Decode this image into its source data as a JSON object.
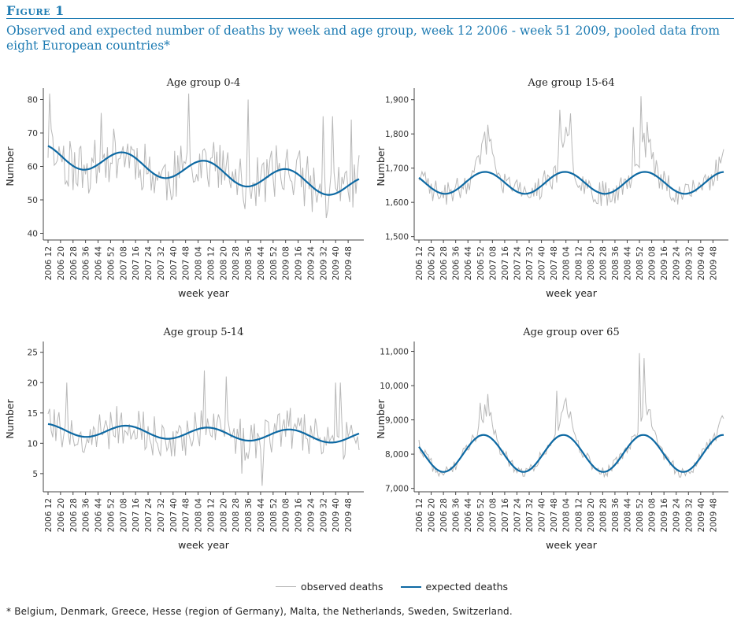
{
  "figure": {
    "label": "Figure 1",
    "title": "Observed and expected number of deaths by week and age group, week 12 2006 - week 51 2009, pooled data from eight European countries*",
    "footnote": "* Belgium, Denmark, Greece, Hesse (region of Germany), Malta, the Netherlands, Sweden, Switzerland."
  },
  "legend": {
    "observed_label": "observed deaths",
    "expected_label": "expected deaths"
  },
  "colors": {
    "accent": "#1f7cb3",
    "observed": "#b8b8b8",
    "expected": "#0d69a3",
    "axis": "#444444"
  },
  "x_tick_labels": [
    "2006 12",
    "2006 20",
    "2006 28",
    "2006 36",
    "2006 44",
    "2006 52",
    "2007 08",
    "2007 16",
    "2007 24",
    "2007 32",
    "2007 40",
    "2007 48",
    "2008 04",
    "2008 12",
    "2008 20",
    "2008 28",
    "2008 36",
    "2008 44",
    "2008 52",
    "2009 08",
    "2009 16",
    "2009 24",
    "2009 32",
    "2009 40",
    "2009 48"
  ],
  "chart_data": [
    {
      "type": "line",
      "title": "Age group 0-4",
      "xlabel": "week year",
      "ylabel": "Number",
      "ylim": [
        38,
        82
      ],
      "yticks": [
        40,
        50,
        60,
        70,
        80
      ],
      "ytick_labels": [
        "40",
        "50",
        "60",
        "70",
        "80"
      ],
      "expected": {
        "mean": 58.5,
        "trend": -0.048,
        "amp": 3.2,
        "peak_week": 8
      },
      "observed": {
        "spread": 8,
        "peak_extra": 0,
        "seed": 11,
        "spikes": [
          [
            1,
            82
          ],
          [
            34,
            76
          ],
          [
            90,
            83
          ],
          [
            128,
            80
          ],
          [
            176,
            75
          ],
          [
            182,
            75
          ],
          [
            194,
            74
          ]
        ]
      },
      "series": [
        {
          "name": "observed deaths",
          "description": "weekly observed counts, noisy around expected"
        },
        {
          "name": "expected deaths",
          "description": "smooth seasonal baseline from about 67 down to 51"
        }
      ]
    },
    {
      "type": "line",
      "title": "Age group 15-64",
      "xlabel": "week year",
      "ylabel": "Number",
      "ylim": [
        1490,
        1920
      ],
      "yticks": [
        1500,
        1600,
        1700,
        1800,
        1900
      ],
      "ytick_labels": [
        "1,500",
        "1,600",
        "1,700",
        "1,800",
        "1,900"
      ],
      "expected": {
        "mean": 1657,
        "trend": 0,
        "amp": 32,
        "peak_week": 3
      },
      "observed": {
        "spread": 38,
        "peak_extra": 150,
        "seed": 23,
        "spikes": [
          [
            92,
            1870
          ],
          [
            99,
            1860
          ],
          [
            140,
            1820
          ],
          [
            145,
            1910
          ]
        ]
      },
      "series": [
        {
          "name": "observed deaths",
          "description": "weekly observed counts with winter peaks up to about 1,910"
        },
        {
          "name": "expected deaths",
          "description": "seasonal baseline between about 1,625 and 1,690"
        }
      ]
    },
    {
      "type": "line",
      "title": "Age group 5-14",
      "xlabel": "week year",
      "ylabel": "Number",
      "ylim": [
        2,
        26
      ],
      "yticks": [
        5,
        10,
        15,
        20,
        25
      ],
      "ytick_labels": [
        "5",
        "10",
        "15",
        "20",
        "25"
      ],
      "expected": {
        "mean": 11.6,
        "trend": -0.006,
        "amp": 1.0,
        "peak_week": 10
      },
      "observed": {
        "spread": 3.6,
        "peak_extra": 0,
        "seed": 5,
        "spikes": [
          [
            12,
            20
          ],
          [
            100,
            22
          ],
          [
            114,
            21
          ],
          [
            184,
            20
          ],
          [
            187,
            20
          ],
          [
            124,
            5
          ],
          [
            137,
            3
          ]
        ]
      },
      "series": [
        {
          "name": "observed deaths",
          "description": "weekly observed counts, roughly 3 to 22"
        },
        {
          "name": "expected deaths",
          "description": "seasonal baseline from about 13.6 down to about 10"
        }
      ]
    },
    {
      "type": "line",
      "title": "Age group over 65",
      "xlabel": "week year",
      "ylabel": "Number",
      "ylim": [
        6900,
        11150
      ],
      "yticks": [
        7000,
        8000,
        9000,
        10000,
        11000
      ],
      "ytick_labels": [
        "7,000",
        "8,000",
        "9,000",
        "10,000",
        "11,000"
      ],
      "expected": {
        "mean": 8020,
        "trend": 0,
        "amp": 540,
        "peak_week": 2
      },
      "observed": {
        "spread": 180,
        "peak_extra": 1300,
        "seed": 41,
        "spikes": [
          [
            144,
            10950
          ],
          [
            147,
            10800
          ],
          [
            40,
            9500
          ],
          [
            90,
            9850
          ]
        ]
      },
      "series": [
        {
          "name": "observed deaths",
          "description": "weekly observed counts with winter peaks, max about 10,950"
        },
        {
          "name": "expected deaths",
          "description": "seasonal baseline between about 7,470 and 8,570"
        }
      ]
    }
  ]
}
